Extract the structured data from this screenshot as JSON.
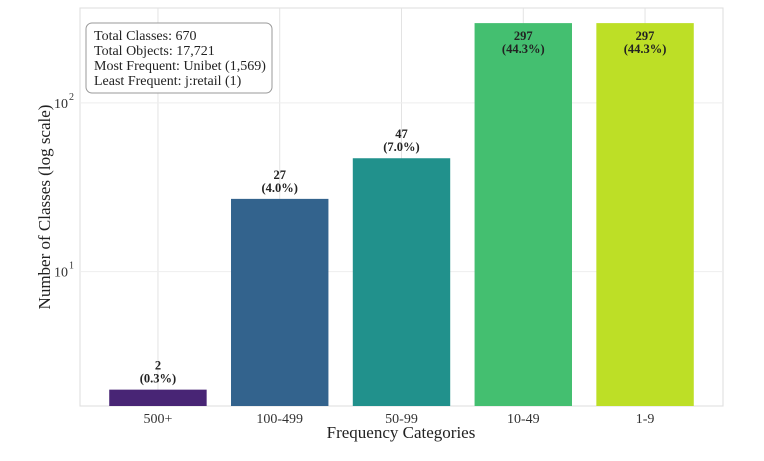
{
  "chart_data": {
    "type": "bar",
    "title": "",
    "xlabel": "Frequency Categories",
    "ylabel": "Number of Classes (log scale)",
    "yscale": "log",
    "ylim": [
      1.6,
      365
    ],
    "grid": true,
    "categories": [
      "500+",
      "100-499",
      "50-99",
      "10-49",
      "1-9"
    ],
    "values": [
      2,
      27,
      47,
      297,
      297
    ],
    "percent_labels": [
      "(0.3%)",
      "(4.0%)",
      "(7.0%)",
      "(44.3%)",
      "(44.3%)"
    ],
    "colors": [
      "#482575",
      "#33638d",
      "#21918c",
      "#44bf70",
      "#bddf26"
    ],
    "y_ticks": [
      {
        "value": 10,
        "label": "10",
        "exp": "1"
      },
      {
        "value": 100,
        "label": "10",
        "exp": "2"
      }
    ],
    "stats_box": {
      "placement": "top-left",
      "lines": [
        "Total Classes: 670",
        "Total Objects: 17,721",
        "Most Frequent: Unibet (1,569)",
        "Least Frequent: j:retail (1)"
      ]
    }
  }
}
